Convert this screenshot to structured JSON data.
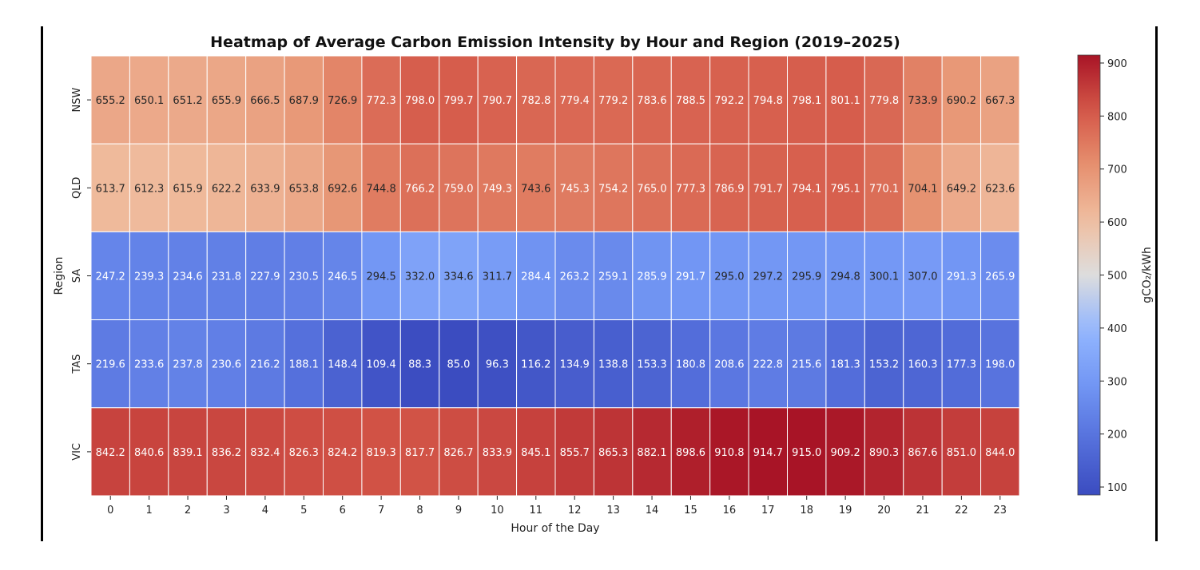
{
  "chart_data": {
    "type": "heatmap",
    "title": "Heatmap of Average Carbon Emission Intensity by Hour and Region (2019–2025)",
    "xlabel": "Hour of the Day",
    "ylabel": "Region",
    "x": [
      "0",
      "1",
      "2",
      "3",
      "4",
      "5",
      "6",
      "7",
      "8",
      "9",
      "10",
      "11",
      "12",
      "13",
      "14",
      "15",
      "16",
      "17",
      "18",
      "19",
      "20",
      "21",
      "22",
      "23"
    ],
    "y": [
      "NSW",
      "QLD",
      "SA",
      "TAS",
      "VIC"
    ],
    "values": [
      [
        655.2,
        650.1,
        651.2,
        655.9,
        666.5,
        687.9,
        726.9,
        772.3,
        798.0,
        799.7,
        790.7,
        782.8,
        779.4,
        779.2,
        783.6,
        788.5,
        792.2,
        794.8,
        798.1,
        801.1,
        779.8,
        733.9,
        690.2,
        667.3
      ],
      [
        613.7,
        612.3,
        615.9,
        622.2,
        633.9,
        653.8,
        692.6,
        744.8,
        766.2,
        759.0,
        749.3,
        743.6,
        745.3,
        754.2,
        765.0,
        777.3,
        786.9,
        791.7,
        794.1,
        795.1,
        770.1,
        704.1,
        649.2,
        623.6
      ],
      [
        247.2,
        239.3,
        234.6,
        231.8,
        227.9,
        230.5,
        246.5,
        294.5,
        332.0,
        334.6,
        311.7,
        284.4,
        263.2,
        259.1,
        285.9,
        291.7,
        295.0,
        297.2,
        295.9,
        294.8,
        300.1,
        307.0,
        291.3,
        265.9
      ],
      [
        219.6,
        233.6,
        237.8,
        230.6,
        216.2,
        188.1,
        148.4,
        109.4,
        88.3,
        85.0,
        96.3,
        116.2,
        134.9,
        138.8,
        153.3,
        180.8,
        208.6,
        222.8,
        215.6,
        181.3,
        153.2,
        160.3,
        177.3,
        198.0
      ],
      [
        842.2,
        840.6,
        839.1,
        836.2,
        832.4,
        826.3,
        824.2,
        819.3,
        817.7,
        826.7,
        833.9,
        845.1,
        855.7,
        865.3,
        882.1,
        898.6,
        910.8,
        914.7,
        915.0,
        909.2,
        890.3,
        867.6,
        851.0,
        844.0
      ]
    ],
    "colorbar": {
      "label": "gCO₂/kWh",
      "ticks": [
        "100",
        "200",
        "300",
        "400",
        "500",
        "600",
        "700",
        "800",
        "900"
      ],
      "range": [
        85.0,
        915.0
      ]
    },
    "colormap": "coolwarm",
    "grid": false
  }
}
